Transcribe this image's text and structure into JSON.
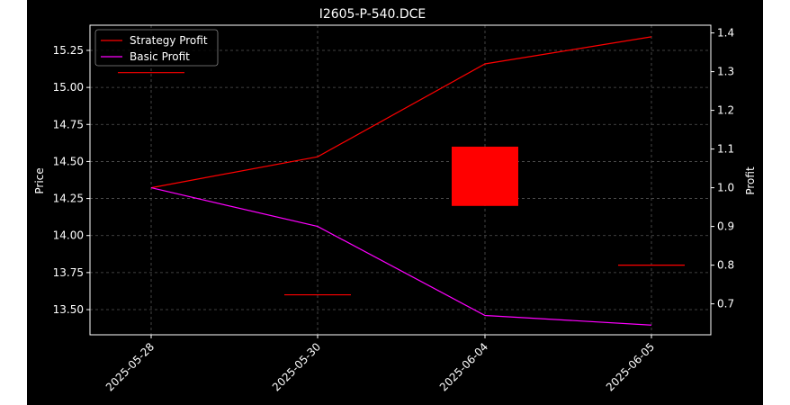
{
  "chart_data": {
    "type": "candlestick+line",
    "title": "I2605-P-540.DCE",
    "xlabel": "",
    "ylabel_left": "Price",
    "ylabel_right": "Profit",
    "categories": [
      "2025-05-28",
      "2025-05-30",
      "2025-06-04",
      "2025-06-05"
    ],
    "ylim_left": [
      13.33,
      15.42
    ],
    "ylim_right": [
      0.62,
      1.42
    ],
    "yticks_left": [
      "13.50",
      "13.75",
      "14.00",
      "14.25",
      "14.50",
      "14.75",
      "15.00",
      "15.25"
    ],
    "yticks_right": [
      "0.7",
      "0.8",
      "0.9",
      "1.0",
      "1.1",
      "1.2",
      "1.3",
      "1.4"
    ],
    "candles": [
      {
        "date": "2025-05-28",
        "open": 15.1,
        "close": 15.1,
        "high": 15.1,
        "low": 15.1
      },
      {
        "date": "2025-05-30",
        "open": 13.6,
        "close": 13.6,
        "high": 13.6,
        "low": 13.6
      },
      {
        "date": "2025-06-04",
        "open": 14.2,
        "close": 14.6,
        "high": 14.6,
        "low": 14.2
      },
      {
        "date": "2025-06-05",
        "open": 13.8,
        "close": 13.8,
        "high": 13.8,
        "low": 13.8
      }
    ],
    "series": [
      {
        "name": "Strategy Profit",
        "axis": "right",
        "color": "#ff0000",
        "values": [
          1.0,
          1.08,
          1.32,
          1.39
        ]
      },
      {
        "name": "Basic Profit",
        "axis": "right",
        "color": "#ff00ff",
        "values": [
          1.0,
          0.9,
          0.67,
          0.645
        ]
      }
    ],
    "candle_color": "#ff0000",
    "grid": true,
    "legend_position": "top-left"
  }
}
